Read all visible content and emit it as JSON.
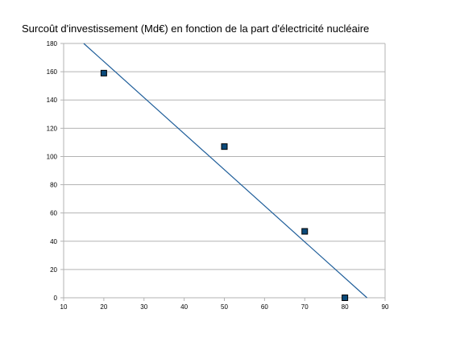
{
  "chart_data": {
    "type": "scatter",
    "title": "Surcoût d'investissement (Md€) en fonction de la part d'électricité nucléaire",
    "xlabel": "",
    "ylabel": "",
    "xlim": [
      10,
      90
    ],
    "ylim": [
      0,
      180
    ],
    "x_ticks": [
      10,
      20,
      30,
      40,
      50,
      60,
      70,
      80,
      90
    ],
    "y_ticks": [
      0,
      20,
      40,
      60,
      80,
      100,
      120,
      140,
      160,
      180
    ],
    "grid": "horizontal",
    "legend": "none",
    "series": [
      {
        "points": [
          {
            "x": 20,
            "y": 159
          },
          {
            "x": 50,
            "y": 107
          },
          {
            "x": 70,
            "y": 47
          },
          {
            "x": 80,
            "y": 0
          }
        ],
        "marker": "square",
        "marker_color": "#0b4a7a"
      }
    ],
    "trendline": {
      "type": "linear",
      "from": {
        "x": 15,
        "y": 180
      },
      "to": {
        "x": 85.5,
        "y": 0
      },
      "color": "#1f5e9a"
    },
    "colors": {
      "grid": "#b3b3b3",
      "axis": "#b3b3b3",
      "marker_fill": "#0b4a7a",
      "marker_stroke": "#000000"
    }
  }
}
